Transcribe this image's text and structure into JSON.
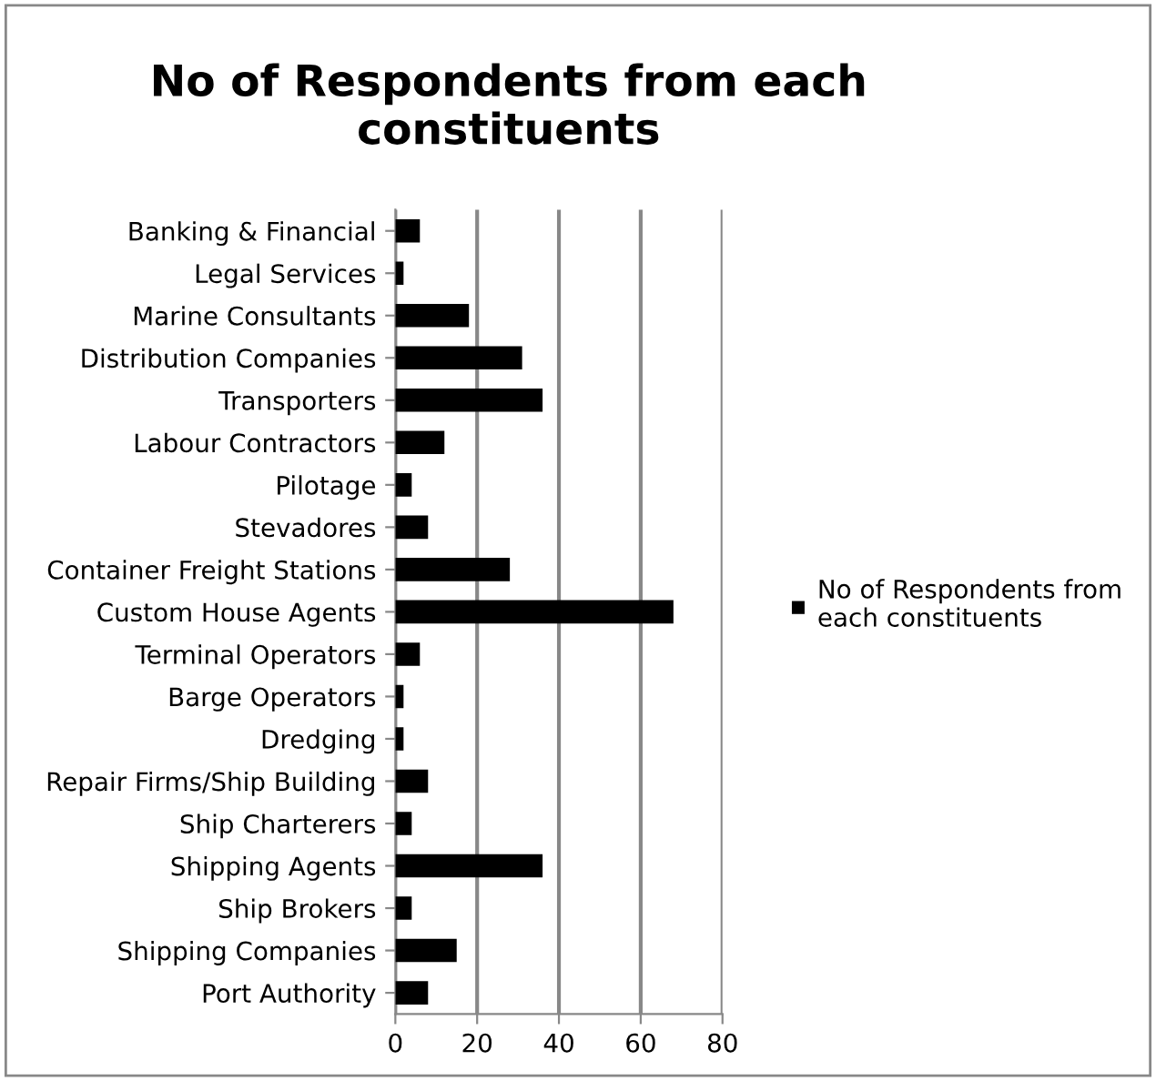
{
  "chart_data": {
    "type": "bar",
    "orientation": "horizontal",
    "title": "No of Respondents from each constituents",
    "categories": [
      "Banking & Financial",
      "Legal Services",
      "Marine Consultants",
      "Distribution Companies",
      "Transporters",
      "Labour Contractors",
      "Pilotage",
      "Stevadores",
      "Container Freight Stations",
      "Custom House Agents",
      "Terminal Operators",
      "Barge Operators",
      "Dredging",
      "Repair Firms/Ship Building",
      "Ship Charterers",
      "Shipping Agents",
      "Ship Brokers",
      "Shipping Companies",
      "Port Authority"
    ],
    "series": [
      {
        "name": "No of Respondents from each constituents",
        "color": "#000000",
        "values": [
          6,
          2,
          18,
          31,
          36,
          12,
          4,
          8,
          28,
          68,
          6,
          2,
          2,
          8,
          4,
          36,
          4,
          15,
          8
        ]
      }
    ],
    "xlim": [
      0,
      80
    ],
    "xticks": [
      0,
      20,
      40,
      60,
      80
    ],
    "grid": "x",
    "legend": "right"
  }
}
